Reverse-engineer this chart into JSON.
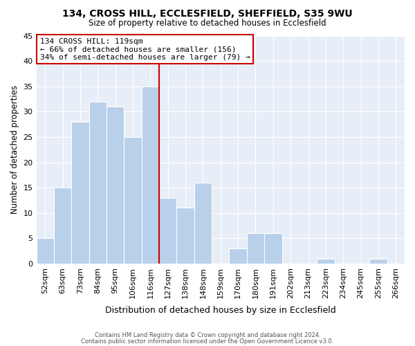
{
  "title": "134, CROSS HILL, ECCLESFIELD, SHEFFIELD, S35 9WU",
  "subtitle": "Size of property relative to detached houses in Ecclesfield",
  "xlabel": "Distribution of detached houses by size in Ecclesfield",
  "ylabel": "Number of detached properties",
  "bar_color": "#b8d0ea",
  "bar_edge_color": "#b8d0ea",
  "axes_bg_color": "#e8eef7",
  "fig_bg_color": "#ffffff",
  "categories": [
    "52sqm",
    "63sqm",
    "73sqm",
    "84sqm",
    "95sqm",
    "106sqm",
    "116sqm",
    "127sqm",
    "138sqm",
    "148sqm",
    "159sqm",
    "170sqm",
    "180sqm",
    "191sqm",
    "202sqm",
    "213sqm",
    "223sqm",
    "234sqm",
    "245sqm",
    "255sqm",
    "266sqm"
  ],
  "values": [
    5,
    15,
    28,
    32,
    31,
    25,
    35,
    13,
    11,
    16,
    0,
    3,
    6,
    6,
    0,
    0,
    1,
    0,
    0,
    1,
    0
  ],
  "ylim": [
    0,
    45
  ],
  "yticks": [
    0,
    5,
    10,
    15,
    20,
    25,
    30,
    35,
    40,
    45
  ],
  "vline_index": 6,
  "vline_color": "#cc0000",
  "annotation_title": "134 CROSS HILL: 119sqm",
  "annotation_line1": "← 66% of detached houses are smaller (156)",
  "annotation_line2": "34% of semi-detached houses are larger (79) →",
  "annotation_box_color": "#ffffff",
  "annotation_box_edge": "#cc0000",
  "footer1": "Contains HM Land Registry data © Crown copyright and database right 2024.",
  "footer2": "Contains public sector information licensed under the Open Government Licence v3.0."
}
